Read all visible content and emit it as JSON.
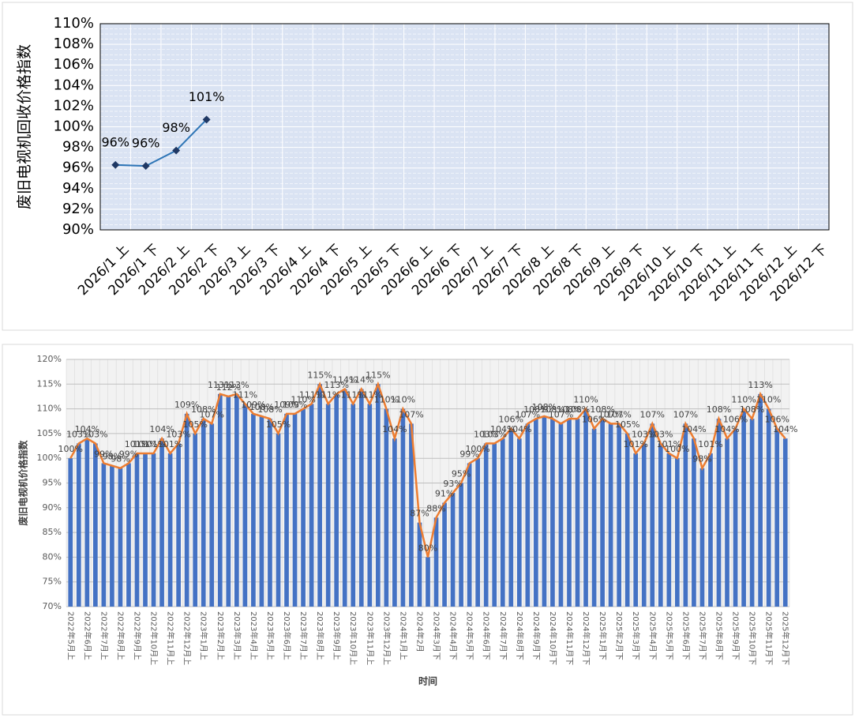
{
  "chart_data": [
    {
      "type": "line",
      "y_label": "废旧电视机回收价格指数",
      "categories": [
        "2026/1 上",
        "2026/1 下",
        "2026/2 上",
        "2026/2 下",
        "2026/3 上",
        "2026/3 下",
        "2026/4 上",
        "2026/4 下",
        "2026/5 上",
        "2026/5 下",
        "2026/6 上",
        "2026/6 下",
        "2026/7 上",
        "2026/7 下",
        "2026/8 上",
        "2026/8 下",
        "2026/9 上",
        "2026/9 下",
        "2026/10 上",
        "2026/10 下",
        "2026/11 上",
        "2026/11 下",
        "2026/12 上",
        "2026/12 下"
      ],
      "values": [
        96.3,
        96.2,
        97.7,
        100.7,
        null,
        null,
        null,
        null,
        null,
        null,
        null,
        null,
        null,
        null,
        null,
        null,
        null,
        null,
        null,
        null,
        null,
        null,
        null,
        null
      ],
      "value_labels": [
        "96%",
        "96%",
        "98%",
        "101%",
        null,
        null,
        null,
        null,
        null,
        null,
        null,
        null,
        null,
        null,
        null,
        null,
        null,
        null,
        null,
        null,
        null,
        null,
        null,
        null
      ],
      "color": "#2e75b6",
      "ylim": [
        90,
        110
      ],
      "yticks": [
        {
          "value": 90,
          "label": "90%"
        },
        {
          "value": 92,
          "label": "92%"
        },
        {
          "value": 94,
          "label": "94%"
        },
        {
          "value": 96,
          "label": "96%"
        },
        {
          "value": 98,
          "label": "98%"
        },
        {
          "value": 100,
          "label": "100%"
        },
        {
          "value": 102,
          "label": "102%"
        },
        {
          "value": 104,
          "label": "104%"
        },
        {
          "value": 106,
          "label": "106%"
        },
        {
          "value": 108,
          "label": "108%"
        },
        {
          "value": 110,
          "label": "110%"
        }
      ],
      "grid": true
    },
    {
      "type": "bar_line",
      "x_label": "时间",
      "y_label": "废旧电视机价格指数",
      "categories": [
        "2022年5月上",
        null,
        "2022年6月上",
        null,
        "2022年7月上",
        null,
        "2022年8月上",
        null,
        "2022年9月上",
        null,
        "2022年10月上",
        null,
        "2022年11月上",
        null,
        "2022年12月上",
        null,
        "2023年1月上",
        null,
        "2023年2月上",
        null,
        "2023年3月上",
        null,
        "2023年4月上",
        null,
        "2023年5月上",
        null,
        "2023年6月上",
        null,
        "2023年7月上",
        null,
        "2023年8月上",
        null,
        "2023年9月上",
        null,
        "2023年10月上",
        null,
        "2023年11月上",
        null,
        "2023年12月上",
        null,
        "2024年1月上",
        null,
        "2024年2月",
        null,
        "2024年3月下",
        null,
        "2024年4月下",
        null,
        "2024年5月下",
        null,
        "2024年6月下",
        null,
        "2024年7月下",
        null,
        "2024年8月下",
        null,
        "2024年9月下",
        null,
        "2024年10月下",
        null,
        "2024年11月下",
        null,
        "2024年12月下",
        null,
        "2025年1月下",
        null,
        "2025年2月下",
        null,
        "2025年3月下",
        null,
        "2025年4月下",
        null,
        "2025年5月下",
        null,
        "2025年6月下",
        null,
        "2025年7月下",
        null,
        "2025年8月下",
        null,
        "2025年9月下",
        null,
        "2025年10月下",
        null,
        "2025年11月下",
        null,
        "2025年12月下"
      ],
      "values": [
        100,
        103,
        104,
        103,
        99,
        98.5,
        98,
        99,
        101,
        101,
        101,
        104,
        101,
        103,
        109,
        105,
        108,
        107,
        113,
        112.5,
        113,
        111,
        109,
        108.5,
        108,
        105,
        109,
        109,
        110,
        111,
        115,
        111,
        113,
        114,
        111,
        114,
        111,
        115,
        110,
        104,
        110,
        107,
        87,
        80,
        88,
        91,
        93,
        95,
        99,
        100,
        103,
        103,
        104,
        106,
        104,
        107,
        108,
        108.5,
        108,
        107,
        108,
        108,
        110,
        106,
        108,
        107,
        107,
        105,
        101,
        103,
        107,
        103,
        101,
        100,
        107,
        104,
        98,
        101,
        108,
        104,
        106,
        110,
        108,
        113,
        110,
        106,
        104
      ],
      "value_labels": [
        "100%",
        "103%",
        "104%",
        "103%",
        "99%",
        "98%",
        "98%",
        "99%",
        "101%",
        "101%",
        "101%",
        "104%",
        "101%",
        "103%",
        "109%",
        "105%",
        "108%",
        "107%",
        "113%",
        "112%",
        "113%",
        "111%",
        "109%",
        "108%",
        "108%",
        "105%",
        "109%",
        "109%",
        "110%",
        "111%",
        "115%",
        "111%",
        "113%",
        "114%",
        "111%",
        "114%",
        "111%",
        "115%",
        "110%",
        "104%",
        "110%",
        "107%",
        "87%",
        "80%",
        "88%",
        "91%",
        "93%",
        "95%",
        "99%",
        "100%",
        "103%",
        "103%",
        "104%",
        "106%",
        "104%",
        "107%",
        "108%",
        "108%",
        "108%",
        "107%",
        "108%",
        "108%",
        "110%",
        "106%",
        "108%",
        "107%",
        "107%",
        "105%",
        "101%",
        "103%",
        "107%",
        "103%",
        "101%",
        "100%",
        "107%",
        "104%",
        "98%",
        "101%",
        "108%",
        "104%",
        "106%",
        "110%",
        "108%",
        "113%",
        "110%",
        "106%",
        "104%"
      ],
      "bar_color": "#4472c4",
      "line_color": "#ed7d31",
      "ylim": [
        70,
        120
      ],
      "yticks": [
        {
          "value": 70,
          "label": "70%"
        },
        {
          "value": 75,
          "label": "75%"
        },
        {
          "value": 80,
          "label": "80%"
        },
        {
          "value": 85,
          "label": "85%"
        },
        {
          "value": 90,
          "label": "90%"
        },
        {
          "value": 95,
          "label": "95%"
        },
        {
          "value": 100,
          "label": "100%"
        },
        {
          "value": 105,
          "label": "105%"
        },
        {
          "value": 110,
          "label": "110%"
        },
        {
          "value": 115,
          "label": "115%"
        },
        {
          "value": 120,
          "label": "120%"
        }
      ],
      "grid": true
    }
  ]
}
